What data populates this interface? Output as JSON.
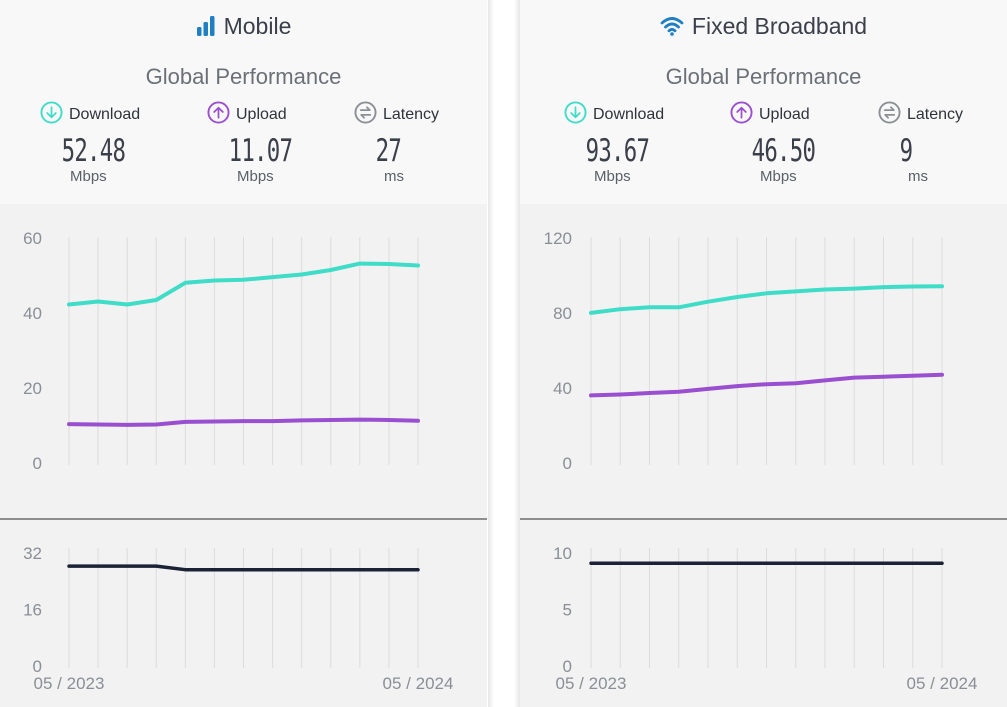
{
  "panels": [
    {
      "id": "mobile",
      "title": "Mobile",
      "subtitle": "Global Performance",
      "metrics": {
        "download": {
          "label": "Download",
          "value": "52.48",
          "unit": "Mbps"
        },
        "upload": {
          "label": "Upload",
          "value": "11.07",
          "unit": "Mbps"
        },
        "latency": {
          "label": "Latency",
          "value": "27",
          "unit": "ms"
        }
      }
    },
    {
      "id": "fixed",
      "title": "Fixed Broadband",
      "subtitle": "Global Performance",
      "metrics": {
        "download": {
          "label": "Download",
          "value": "93.67",
          "unit": "Mbps"
        },
        "upload": {
          "label": "Upload",
          "value": "46.50",
          "unit": "Mbps"
        },
        "latency": {
          "label": "Latency",
          "value": "9",
          "unit": "ms"
        }
      }
    }
  ],
  "colors": {
    "download": "#3fdcc8",
    "upload": "#9a4fd0",
    "latency_line": "#1c2236",
    "latency_icon": "#8c9096",
    "title_icon": "#1f7fc2"
  },
  "icons": {
    "mobile": "signal-bars-icon",
    "fixed": "wifi-icon",
    "download": "arrow-down-circle-icon",
    "upload": "arrow-up-circle-icon",
    "latency": "arrows-exchange-circle-icon"
  },
  "chart_data": [
    {
      "type": "line",
      "panel": "Mobile",
      "x": [
        "05 / 2023",
        "06 / 2023",
        "07 / 2023",
        "08 / 2023",
        "09 / 2023",
        "10 / 2023",
        "11 / 2023",
        "12 / 2023",
        "01 / 2024",
        "02 / 2024",
        "03 / 2024",
        "04 / 2024",
        "05 / 2024"
      ],
      "x_tick_labels": [
        "05 / 2023",
        "05 / 2024"
      ],
      "speed": {
        "ylim": [
          0,
          60
        ],
        "y_ticks": [
          0,
          20,
          40,
          60
        ],
        "series": [
          {
            "key": "download",
            "values": [
              42.0,
              42.8,
              42.0,
              43.2,
              47.8,
              48.4,
              48.6,
              49.3,
              50.0,
              51.2,
              52.9,
              52.8,
              52.4
            ]
          },
          {
            "key": "upload",
            "values": [
              10.1,
              10.0,
              9.9,
              10.0,
              10.7,
              10.8,
              10.9,
              10.9,
              11.1,
              11.2,
              11.3,
              11.2,
              11.0
            ]
          }
        ]
      },
      "latency": {
        "ylim": [
          0,
          32
        ],
        "y_ticks": [
          0,
          16,
          32
        ],
        "series": [
          {
            "key": "latency",
            "values": [
              28,
              28,
              28,
              28,
              27,
              27,
              27,
              27,
              27,
              27,
              27,
              27,
              27
            ]
          }
        ]
      }
    },
    {
      "type": "line",
      "panel": "Fixed Broadband",
      "x": [
        "05 / 2023",
        "06 / 2023",
        "07 / 2023",
        "08 / 2023",
        "09 / 2023",
        "10 / 2023",
        "11 / 2023",
        "12 / 2023",
        "01 / 2024",
        "02 / 2024",
        "03 / 2024",
        "04 / 2024",
        "05 / 2024"
      ],
      "x_tick_labels": [
        "05 / 2023",
        "05 / 2024"
      ],
      "speed": {
        "ylim": [
          0,
          120
        ],
        "y_ticks": [
          0,
          40,
          80,
          120
        ],
        "series": [
          {
            "key": "download",
            "values": [
              79.5,
              81.5,
              82.5,
              82.5,
              85.5,
              88.0,
              90.0,
              91.0,
              92.0,
              92.5,
              93.3,
              93.6,
              93.7
            ]
          },
          {
            "key": "upload",
            "values": [
              35.5,
              36.0,
              36.8,
              37.5,
              39.0,
              40.5,
              41.5,
              42.0,
              43.5,
              45.0,
              45.5,
              46.0,
              46.5
            ]
          }
        ]
      },
      "latency": {
        "ylim": [
          0,
          10
        ],
        "y_ticks": [
          0,
          5,
          10
        ],
        "series": [
          {
            "key": "latency",
            "values": [
              9,
              9,
              9,
              9,
              9,
              9,
              9,
              9,
              9,
              9,
              9,
              9,
              9
            ]
          }
        ]
      }
    }
  ]
}
